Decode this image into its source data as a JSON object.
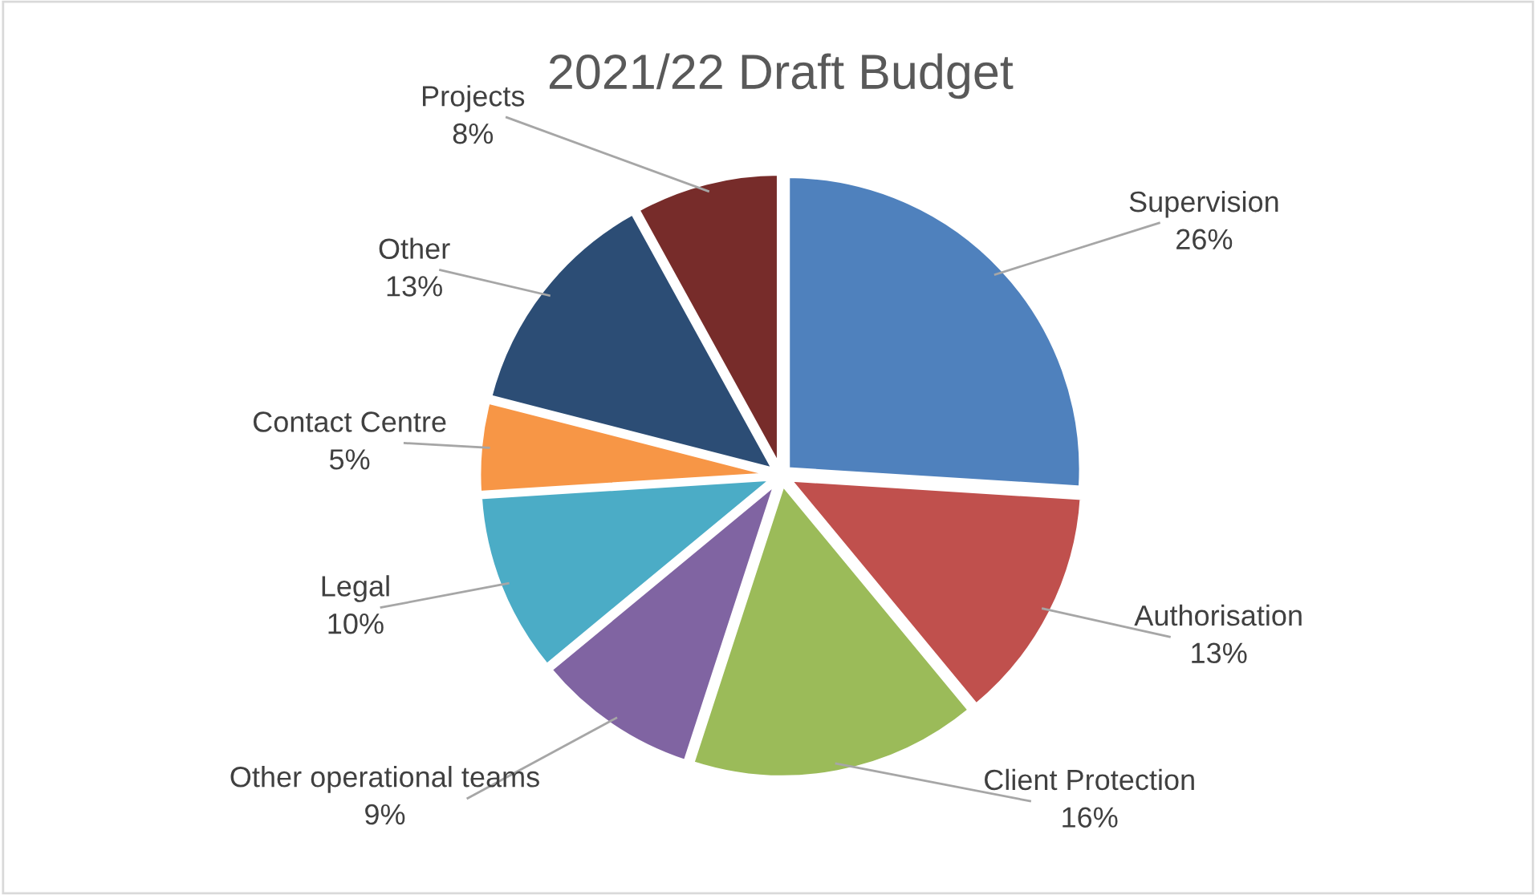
{
  "chart_data": {
    "type": "pie",
    "title": "2021/22 Draft Budget",
    "categories": [
      "Supervision",
      "Authorisation",
      "Client Protection",
      "Other operational teams",
      "Legal",
      "Contact Centre",
      "Other",
      "Projects"
    ],
    "values": [
      26,
      13,
      16,
      9,
      10,
      5,
      13,
      8
    ],
    "value_labels": [
      "26%",
      "13%",
      "16%",
      "9%",
      "10%",
      "5%",
      "13%",
      "8%"
    ],
    "colors": [
      "#4f81bd",
      "#c0504d",
      "#9bbb59",
      "#8064a2",
      "#4bacc6",
      "#f79646",
      "#2c4d75",
      "#772c2a"
    ],
    "legend": false
  }
}
